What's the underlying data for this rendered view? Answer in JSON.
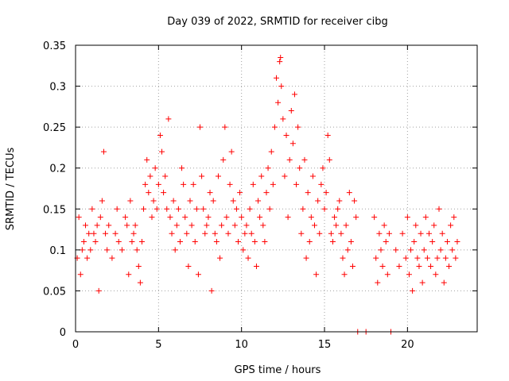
{
  "chart_data": {
    "type": "scatter",
    "title": "Day 039 of 2022, SRMTID for receiver cibg",
    "xlabel": "GPS time / hours",
    "ylabel": "SRMTID / TECUs",
    "xlim": [
      0,
      24.2
    ],
    "ylim": [
      0,
      0.35
    ],
    "xticks": [
      0,
      5,
      10,
      15,
      20
    ],
    "xtick_labels": [
      "0",
      "5",
      "10",
      "15",
      "20"
    ],
    "yticks": [
      0,
      0.05,
      0.1,
      0.15,
      0.2,
      0.25,
      0.3,
      0.35
    ],
    "ytick_labels": [
      "0",
      "0.05",
      "0.1",
      "0.15",
      "0.2",
      "0.25",
      "0.3",
      "0.35"
    ],
    "grid": true,
    "marker": "+",
    "color": "#ff0000",
    "series": [
      {
        "name": "SRMTID",
        "points": [
          [
            0.1,
            0.09
          ],
          [
            0.2,
            0.14
          ],
          [
            0.3,
            0.07
          ],
          [
            0.4,
            0.1
          ],
          [
            0.5,
            0.11
          ],
          [
            0.6,
            0.13
          ],
          [
            0.7,
            0.09
          ],
          [
            0.8,
            0.12
          ],
          [
            0.9,
            0.1
          ],
          [
            1.0,
            0.15
          ],
          [
            1.1,
            0.12
          ],
          [
            1.2,
            0.11
          ],
          [
            1.3,
            0.13
          ],
          [
            1.4,
            0.05
          ],
          [
            1.5,
            0.14
          ],
          [
            1.6,
            0.16
          ],
          [
            1.7,
            0.22
          ],
          [
            1.8,
            0.12
          ],
          [
            1.9,
            0.1
          ],
          [
            2.0,
            0.13
          ],
          [
            2.2,
            0.09
          ],
          [
            2.4,
            0.12
          ],
          [
            2.5,
            0.15
          ],
          [
            2.6,
            0.11
          ],
          [
            2.8,
            0.1
          ],
          [
            3.0,
            0.14
          ],
          [
            3.1,
            0.13
          ],
          [
            3.2,
            0.07
          ],
          [
            3.3,
            0.16
          ],
          [
            3.4,
            0.11
          ],
          [
            3.5,
            0.12
          ],
          [
            3.6,
            0.13
          ],
          [
            3.7,
            0.1
          ],
          [
            3.8,
            0.08
          ],
          [
            3.9,
            0.06
          ],
          [
            4.0,
            0.11
          ],
          [
            4.1,
            0.15
          ],
          [
            4.2,
            0.18
          ],
          [
            4.3,
            0.21
          ],
          [
            4.4,
            0.17
          ],
          [
            4.5,
            0.19
          ],
          [
            4.6,
            0.14
          ],
          [
            4.7,
            0.16
          ],
          [
            4.8,
            0.2
          ],
          [
            4.9,
            0.15
          ],
          [
            5.0,
            0.18
          ],
          [
            5.1,
            0.24
          ],
          [
            5.2,
            0.22
          ],
          [
            5.3,
            0.17
          ],
          [
            5.4,
            0.19
          ],
          [
            5.5,
            0.15
          ],
          [
            5.6,
            0.26
          ],
          [
            5.7,
            0.14
          ],
          [
            5.8,
            0.12
          ],
          [
            5.9,
            0.16
          ],
          [
            6.0,
            0.1
          ],
          [
            6.1,
            0.13
          ],
          [
            6.2,
            0.15
          ],
          [
            6.3,
            0.11
          ],
          [
            6.4,
            0.2
          ],
          [
            6.5,
            0.18
          ],
          [
            6.6,
            0.14
          ],
          [
            6.7,
            0.12
          ],
          [
            6.8,
            0.08
          ],
          [
            6.9,
            0.16
          ],
          [
            7.0,
            0.13
          ],
          [
            7.1,
            0.18
          ],
          [
            7.2,
            0.11
          ],
          [
            7.3,
            0.15
          ],
          [
            7.4,
            0.07
          ],
          [
            7.5,
            0.25
          ],
          [
            7.6,
            0.19
          ],
          [
            7.7,
            0.15
          ],
          [
            7.8,
            0.12
          ],
          [
            7.9,
            0.13
          ],
          [
            8.0,
            0.14
          ],
          [
            8.1,
            0.17
          ],
          [
            8.2,
            0.05
          ],
          [
            8.3,
            0.16
          ],
          [
            8.4,
            0.12
          ],
          [
            8.5,
            0.11
          ],
          [
            8.6,
            0.19
          ],
          [
            8.7,
            0.09
          ],
          [
            8.8,
            0.13
          ],
          [
            8.9,
            0.21
          ],
          [
            9.0,
            0.25
          ],
          [
            9.1,
            0.14
          ],
          [
            9.2,
            0.12
          ],
          [
            9.3,
            0.18
          ],
          [
            9.4,
            0.22
          ],
          [
            9.5,
            0.16
          ],
          [
            9.6,
            0.13
          ],
          [
            9.7,
            0.15
          ],
          [
            9.8,
            0.11
          ],
          [
            9.9,
            0.17
          ],
          [
            10.0,
            0.14
          ],
          [
            10.1,
            0.1
          ],
          [
            10.2,
            0.12
          ],
          [
            10.3,
            0.13
          ],
          [
            10.4,
            0.09
          ],
          [
            10.5,
            0.15
          ],
          [
            10.6,
            0.12
          ],
          [
            10.7,
            0.18
          ],
          [
            10.8,
            0.11
          ],
          [
            10.9,
            0.08
          ],
          [
            11.0,
            0.16
          ],
          [
            11.1,
            0.14
          ],
          [
            11.2,
            0.19
          ],
          [
            11.3,
            0.13
          ],
          [
            11.4,
            0.11
          ],
          [
            11.5,
            0.17
          ],
          [
            11.6,
            0.2
          ],
          [
            11.7,
            0.15
          ],
          [
            11.8,
            0.22
          ],
          [
            11.9,
            0.18
          ],
          [
            12.0,
            0.25
          ],
          [
            12.1,
            0.31
          ],
          [
            12.2,
            0.28
          ],
          [
            12.3,
            0.33
          ],
          [
            12.35,
            0.335
          ],
          [
            12.4,
            0.3
          ],
          [
            12.5,
            0.26
          ],
          [
            12.6,
            0.19
          ],
          [
            12.7,
            0.24
          ],
          [
            12.8,
            0.14
          ],
          [
            12.9,
            0.21
          ],
          [
            13.0,
            0.27
          ],
          [
            13.1,
            0.23
          ],
          [
            13.2,
            0.29
          ],
          [
            13.3,
            0.18
          ],
          [
            13.4,
            0.25
          ],
          [
            13.5,
            0.2
          ],
          [
            13.6,
            0.12
          ],
          [
            13.7,
            0.15
          ],
          [
            13.8,
            0.21
          ],
          [
            13.9,
            0.09
          ],
          [
            14.0,
            0.17
          ],
          [
            14.1,
            0.11
          ],
          [
            14.2,
            0.14
          ],
          [
            14.3,
            0.19
          ],
          [
            14.4,
            0.13
          ],
          [
            14.5,
            0.07
          ],
          [
            14.6,
            0.16
          ],
          [
            14.7,
            0.12
          ],
          [
            14.8,
            0.18
          ],
          [
            14.9,
            0.2
          ],
          [
            15.0,
            0.15
          ],
          [
            15.1,
            0.17
          ],
          [
            15.2,
            0.24
          ],
          [
            15.3,
            0.21
          ],
          [
            15.4,
            0.12
          ],
          [
            15.5,
            0.11
          ],
          [
            15.6,
            0.14
          ],
          [
            15.7,
            0.13
          ],
          [
            15.8,
            0.15
          ],
          [
            15.9,
            0.16
          ],
          [
            16.0,
            0.12
          ],
          [
            16.1,
            0.09
          ],
          [
            16.2,
            0.07
          ],
          [
            16.3,
            0.13
          ],
          [
            16.4,
            0.1
          ],
          [
            16.5,
            0.17
          ],
          [
            16.6,
            0.11
          ],
          [
            16.7,
            0.08
          ],
          [
            16.8,
            0.16
          ],
          [
            16.9,
            0.14
          ],
          [
            17.0,
            0.0
          ],
          [
            17.5,
            0.0
          ],
          [
            18.0,
            0.14
          ],
          [
            18.1,
            0.09
          ],
          [
            18.2,
            0.06
          ],
          [
            18.3,
            0.12
          ],
          [
            18.4,
            0.1
          ],
          [
            18.5,
            0.08
          ],
          [
            18.6,
            0.13
          ],
          [
            18.7,
            0.11
          ],
          [
            18.8,
            0.07
          ],
          [
            18.9,
            0.12
          ],
          [
            19.0,
            0.0
          ],
          [
            19.3,
            0.1
          ],
          [
            19.5,
            0.08
          ],
          [
            19.7,
            0.12
          ],
          [
            19.9,
            0.09
          ],
          [
            20.0,
            0.14
          ],
          [
            20.1,
            0.07
          ],
          [
            20.2,
            0.1
          ],
          [
            20.3,
            0.05
          ],
          [
            20.4,
            0.11
          ],
          [
            20.5,
            0.13
          ],
          [
            20.6,
            0.09
          ],
          [
            20.7,
            0.08
          ],
          [
            20.8,
            0.12
          ],
          [
            20.9,
            0.06
          ],
          [
            21.0,
            0.1
          ],
          [
            21.1,
            0.14
          ],
          [
            21.2,
            0.09
          ],
          [
            21.3,
            0.12
          ],
          [
            21.4,
            0.08
          ],
          [
            21.5,
            0.11
          ],
          [
            21.6,
            0.13
          ],
          [
            21.7,
            0.07
          ],
          [
            21.8,
            0.09
          ],
          [
            21.9,
            0.15
          ],
          [
            22.0,
            0.1
          ],
          [
            22.1,
            0.12
          ],
          [
            22.2,
            0.06
          ],
          [
            22.3,
            0.09
          ],
          [
            22.4,
            0.11
          ],
          [
            22.5,
            0.08
          ],
          [
            22.6,
            0.13
          ],
          [
            22.7,
            0.1
          ],
          [
            22.8,
            0.14
          ],
          [
            22.9,
            0.09
          ],
          [
            23.0,
            0.11
          ]
        ]
      }
    ]
  }
}
